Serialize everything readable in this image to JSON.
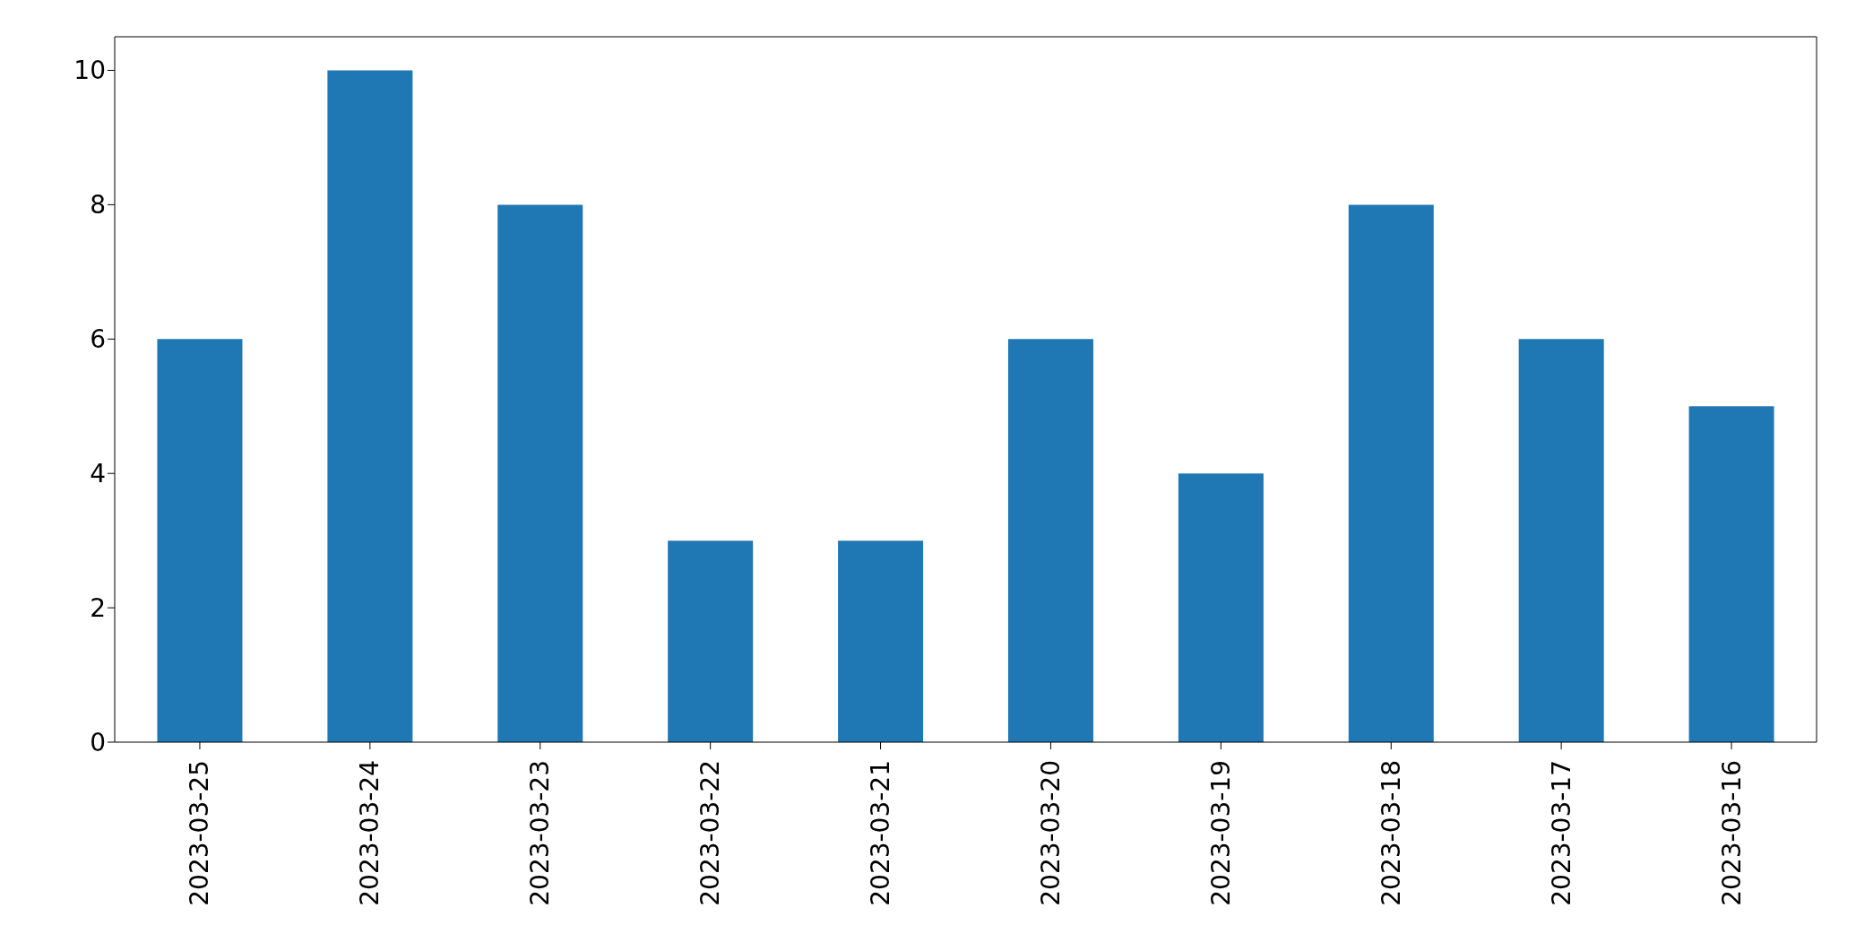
{
  "chart_data": {
    "type": "bar",
    "categories": [
      "2023-03-25",
      "2023-03-24",
      "2023-03-23",
      "2023-03-22",
      "2023-03-21",
      "2023-03-20",
      "2023-03-19",
      "2023-03-18",
      "2023-03-17",
      "2023-03-16"
    ],
    "values": [
      6,
      10,
      8,
      3,
      3,
      6,
      4,
      8,
      6,
      5
    ],
    "color": "#1f77b4",
    "ylim": [
      0,
      10.5
    ],
    "yticks": [
      0,
      2,
      4,
      6,
      8,
      10
    ],
    "grid": false
  }
}
